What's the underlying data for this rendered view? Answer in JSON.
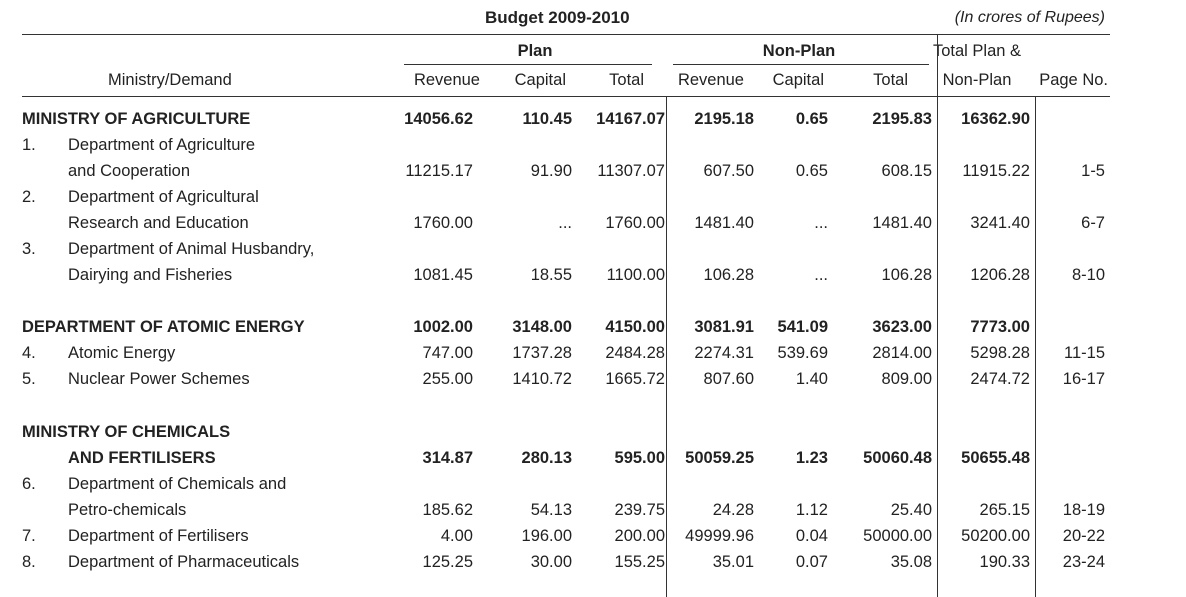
{
  "header": {
    "title": "Budget 2009-2010",
    "units": "(In crores of Rupees)",
    "col_ministry": "Ministry/Demand",
    "group_plan": "Plan",
    "group_nonplan": "Non-Plan",
    "col_total_plan_nonplan_1": "Total Plan &",
    "col_total_plan_nonplan_2": "Non-Plan",
    "col_page": "Page No.",
    "sub": [
      "Revenue",
      "Capital",
      "Total",
      "Revenue",
      "Capital",
      "Total"
    ]
  },
  "rows": [
    {
      "type": "ministry",
      "num": "",
      "name": "MINISTRY OF AGRICULTURE",
      "v": [
        "14056.62",
        "110.45",
        "14167.07",
        "2195.18",
        "0.65",
        "2195.83",
        "16362.90"
      ],
      "page": ""
    },
    {
      "type": "dept",
      "num": "1.",
      "name": "Department of Agriculture",
      "v": [],
      "page": ""
    },
    {
      "type": "cont",
      "num": "",
      "name": "and Cooperation",
      "v": [
        "11215.17",
        "91.90",
        "11307.07",
        "607.50",
        "0.65",
        "608.15",
        "11915.22"
      ],
      "page": "1-5"
    },
    {
      "type": "dept",
      "num": "2.",
      "name": "Department of Agricultural",
      "v": [],
      "page": ""
    },
    {
      "type": "cont",
      "num": "",
      "name": "Research and Education",
      "v": [
        "1760.00",
        "...",
        "1760.00",
        "1481.40",
        "...",
        "1481.40",
        "3241.40"
      ],
      "page": "6-7"
    },
    {
      "type": "dept",
      "num": "3.",
      "name": "Department of Animal Husbandry,",
      "v": [],
      "page": ""
    },
    {
      "type": "cont",
      "num": "",
      "name": "Dairying and Fisheries",
      "v": [
        "1081.45",
        "18.55",
        "1100.00",
        "106.28",
        "...",
        "106.28",
        "1206.28"
      ],
      "page": "8-10"
    },
    {
      "type": "ministry",
      "num": "",
      "name": "DEPARTMENT OF ATOMIC ENERGY",
      "v": [
        "1002.00",
        "3148.00",
        "4150.00",
        "3081.91",
        "541.09",
        "3623.00",
        "7773.00"
      ],
      "page": ""
    },
    {
      "type": "dept",
      "num": "4.",
      "name": "Atomic Energy",
      "v": [
        "747.00",
        "1737.28",
        "2484.28",
        "2274.31",
        "539.69",
        "2814.00",
        "5298.28"
      ],
      "page": "11-15"
    },
    {
      "type": "dept",
      "num": "5.",
      "name": "Nuclear Power Schemes",
      "v": [
        "255.00",
        "1410.72",
        "1665.72",
        "807.60",
        "1.40",
        "809.00",
        "2474.72"
      ],
      "page": "16-17"
    },
    {
      "type": "ministry",
      "num": "",
      "name": "MINISTRY OF CHEMICALS",
      "v": [],
      "page": ""
    },
    {
      "type": "ministry-cont",
      "num": "",
      "name": "AND FERTILISERS",
      "v": [
        "314.87",
        "280.13",
        "595.00",
        "50059.25",
        "1.23",
        "50060.48",
        "50655.48"
      ],
      "page": ""
    },
    {
      "type": "dept",
      "num": "6.",
      "name": "Department of Chemicals and",
      "v": [],
      "page": ""
    },
    {
      "type": "cont",
      "num": "",
      "name": "Petro-chemicals",
      "v": [
        "185.62",
        "54.13",
        "239.75",
        "24.28",
        "1.12",
        "25.40",
        "265.15"
      ],
      "page": "18-19"
    },
    {
      "type": "dept",
      "num": "7.",
      "name": "Department of Fertilisers",
      "v": [
        "4.00",
        "196.00",
        "200.00",
        "49999.96",
        "0.04",
        "50000.00",
        "50200.00"
      ],
      "page": "20-22"
    },
    {
      "type": "dept",
      "num": "8.",
      "name": "Department of Pharmaceuticals",
      "v": [
        "125.25",
        "30.00",
        "155.25",
        "35.01",
        "0.07",
        "35.08",
        "190.33"
      ],
      "page": "23-24"
    }
  ]
}
